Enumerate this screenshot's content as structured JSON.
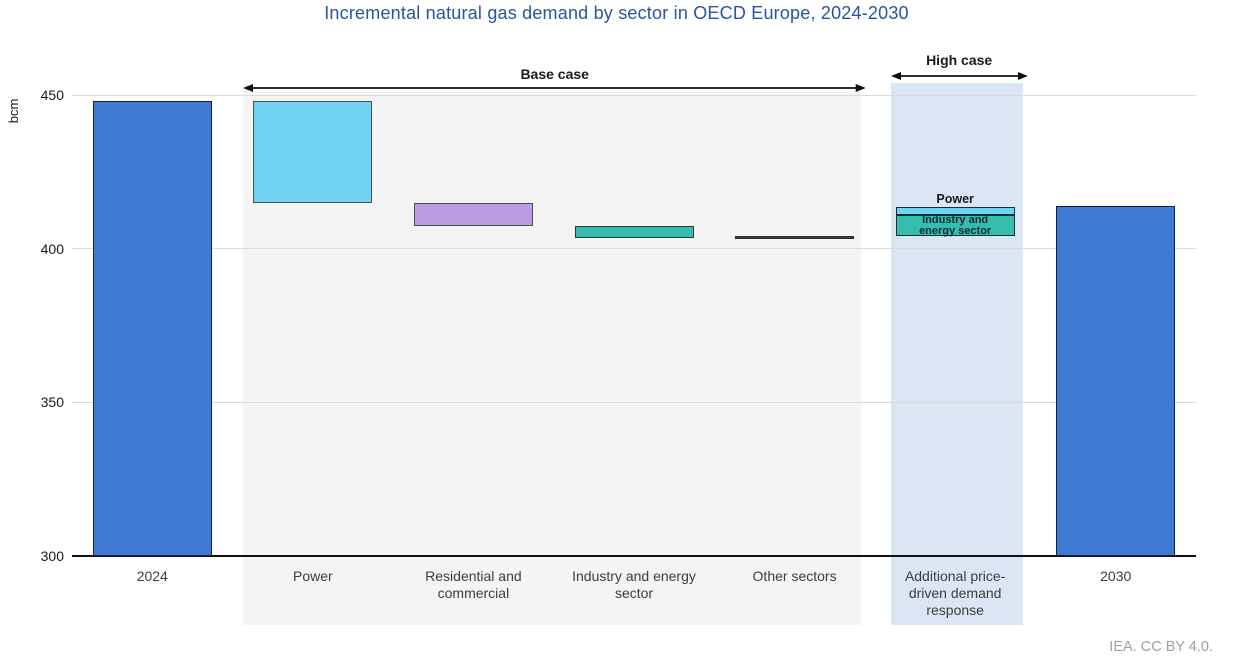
{
  "footer": "IEA. CC BY 4.0.",
  "colors": {
    "title_text": "#2A5599",
    "footer_text": "#9BA1A6",
    "grid_line": "#DBDBDB",
    "axis_line": "#111111",
    "tick_text": "#1A1A1A",
    "category_text": "#3D3D3D",
    "base_case_band": "#F4F4F4",
    "high_case_band": "#DBE6F4",
    "bar_blue": "#3E79D3",
    "bar_cyan": "#6FD4F2",
    "bar_purple": "#BB9DE6",
    "bar_teal": "#35BDAE",
    "bar_dark": "#3F3F3F"
  },
  "chart_data": {
    "type": "waterfall",
    "title": "Incremental natural gas demand by sector in OECD Europe, 2024-2030",
    "ylabel": "bcm",
    "unit": "bcm",
    "ylim": [
      300,
      455
    ],
    "yticks": [
      300,
      350,
      400,
      450
    ],
    "grid": true,
    "legend": "none",
    "columns": [
      {
        "category": "2024",
        "segments": [
          {
            "name": "2024 total demand",
            "from": 300,
            "to": 448,
            "fill": "#3E79D3",
            "stroke": "#15233C",
            "stroke_width": 1.5
          }
        ]
      },
      {
        "category": "Power",
        "scenario": "Base case",
        "segments": [
          {
            "name": "Power decline",
            "from": 415,
            "to": 448,
            "fill": "#6FD4F2",
            "stroke": "#45525C",
            "stroke_width": 1
          }
        ]
      },
      {
        "category": "Residential and commercial",
        "scenario": "Base case",
        "segments": [
          {
            "name": "Residential and commercial decline",
            "from": 407.5,
            "to": 415,
            "fill": "#BB9DE6",
            "stroke": "#504A5F",
            "stroke_width": 1
          }
        ]
      },
      {
        "category": "Industry and energy sector",
        "scenario": "Base case",
        "segments": [
          {
            "name": "Industry and energy sector decline",
            "from": 403.5,
            "to": 407.5,
            "fill": "#35BDAE",
            "stroke": "#2C3A3F",
            "stroke_width": 1
          }
        ]
      },
      {
        "category": "Other sectors",
        "scenario": "Base case",
        "segments": [
          {
            "name": "Other sectors decline",
            "from": 403,
            "to": 404,
            "fill": "#3F3F3F",
            "stroke": "#2A2A2A",
            "stroke_width": 1
          }
        ]
      },
      {
        "category": "Additional price-driven demand response",
        "scenario": "High case",
        "segments": [
          {
            "name": "Industry and energy sector response",
            "label": "Industry and energy sector",
            "label_pos": "inside",
            "from": 404,
            "to": 411,
            "fill": "#35BDAE",
            "stroke": "#1E2B3A",
            "stroke_width": 1
          },
          {
            "name": "Power response",
            "label": "Power",
            "label_pos": "above",
            "from": 411,
            "to": 413.5,
            "fill": "#6FD4F2",
            "stroke": "#1E2B3A",
            "stroke_width": 1
          }
        ]
      },
      {
        "category": "2030",
        "segments": [
          {
            "name": "2030 total demand",
            "from": 300,
            "to": 414,
            "fill": "#3E79D3",
            "stroke": "#15233C",
            "stroke_width": 1.5
          }
        ]
      }
    ],
    "scenario_bands": [
      {
        "label": "Base case",
        "from_col": 1,
        "to_col": 4,
        "fill": "#F4F4F4"
      },
      {
        "label": "High case",
        "from_col": 5,
        "to_col": 5,
        "fill": "#DBE6F4"
      }
    ]
  }
}
